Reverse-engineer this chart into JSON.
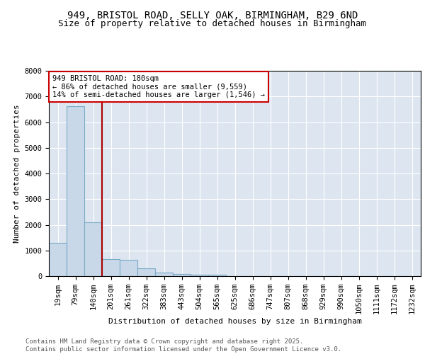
{
  "title1": "949, BRISTOL ROAD, SELLY OAK, BIRMINGHAM, B29 6ND",
  "title2": "Size of property relative to detached houses in Birmingham",
  "xlabel": "Distribution of detached houses by size in Birmingham",
  "ylabel": "Number of detached properties",
  "bar_labels": [
    "19sqm",
    "79sqm",
    "140sqm",
    "201sqm",
    "261sqm",
    "322sqm",
    "383sqm",
    "443sqm",
    "504sqm",
    "565sqm",
    "625sqm",
    "686sqm",
    "747sqm",
    "807sqm",
    "868sqm",
    "929sqm",
    "990sqm",
    "1050sqm",
    "1111sqm",
    "1172sqm",
    "1232sqm"
  ],
  "bar_values": [
    1310,
    6620,
    2100,
    650,
    640,
    295,
    150,
    95,
    55,
    50,
    5,
    3,
    2,
    2,
    1,
    1,
    1,
    0,
    0,
    0,
    0
  ],
  "bar_color": "#c8d8e8",
  "bar_edgecolor": "#7aaac8",
  "vline_x": 2.5,
  "vline_color": "#aa0000",
  "annotation_text": "949 BRISTOL ROAD: 180sqm\n← 86% of detached houses are smaller (9,559)\n14% of semi-detached houses are larger (1,546) →",
  "annotation_box_color": "#cc0000",
  "ylim": [
    0,
    8000
  ],
  "yticks": [
    0,
    1000,
    2000,
    3000,
    4000,
    5000,
    6000,
    7000,
    8000
  ],
  "background_color": "#dde6f0",
  "grid_color": "#ffffff",
  "footer_text": "Contains HM Land Registry data © Crown copyright and database right 2025.\nContains public sector information licensed under the Open Government Licence v3.0.",
  "title_fontsize": 10,
  "subtitle_fontsize": 9,
  "axis_fontsize": 8,
  "tick_fontsize": 7.5,
  "footer_fontsize": 6.5
}
